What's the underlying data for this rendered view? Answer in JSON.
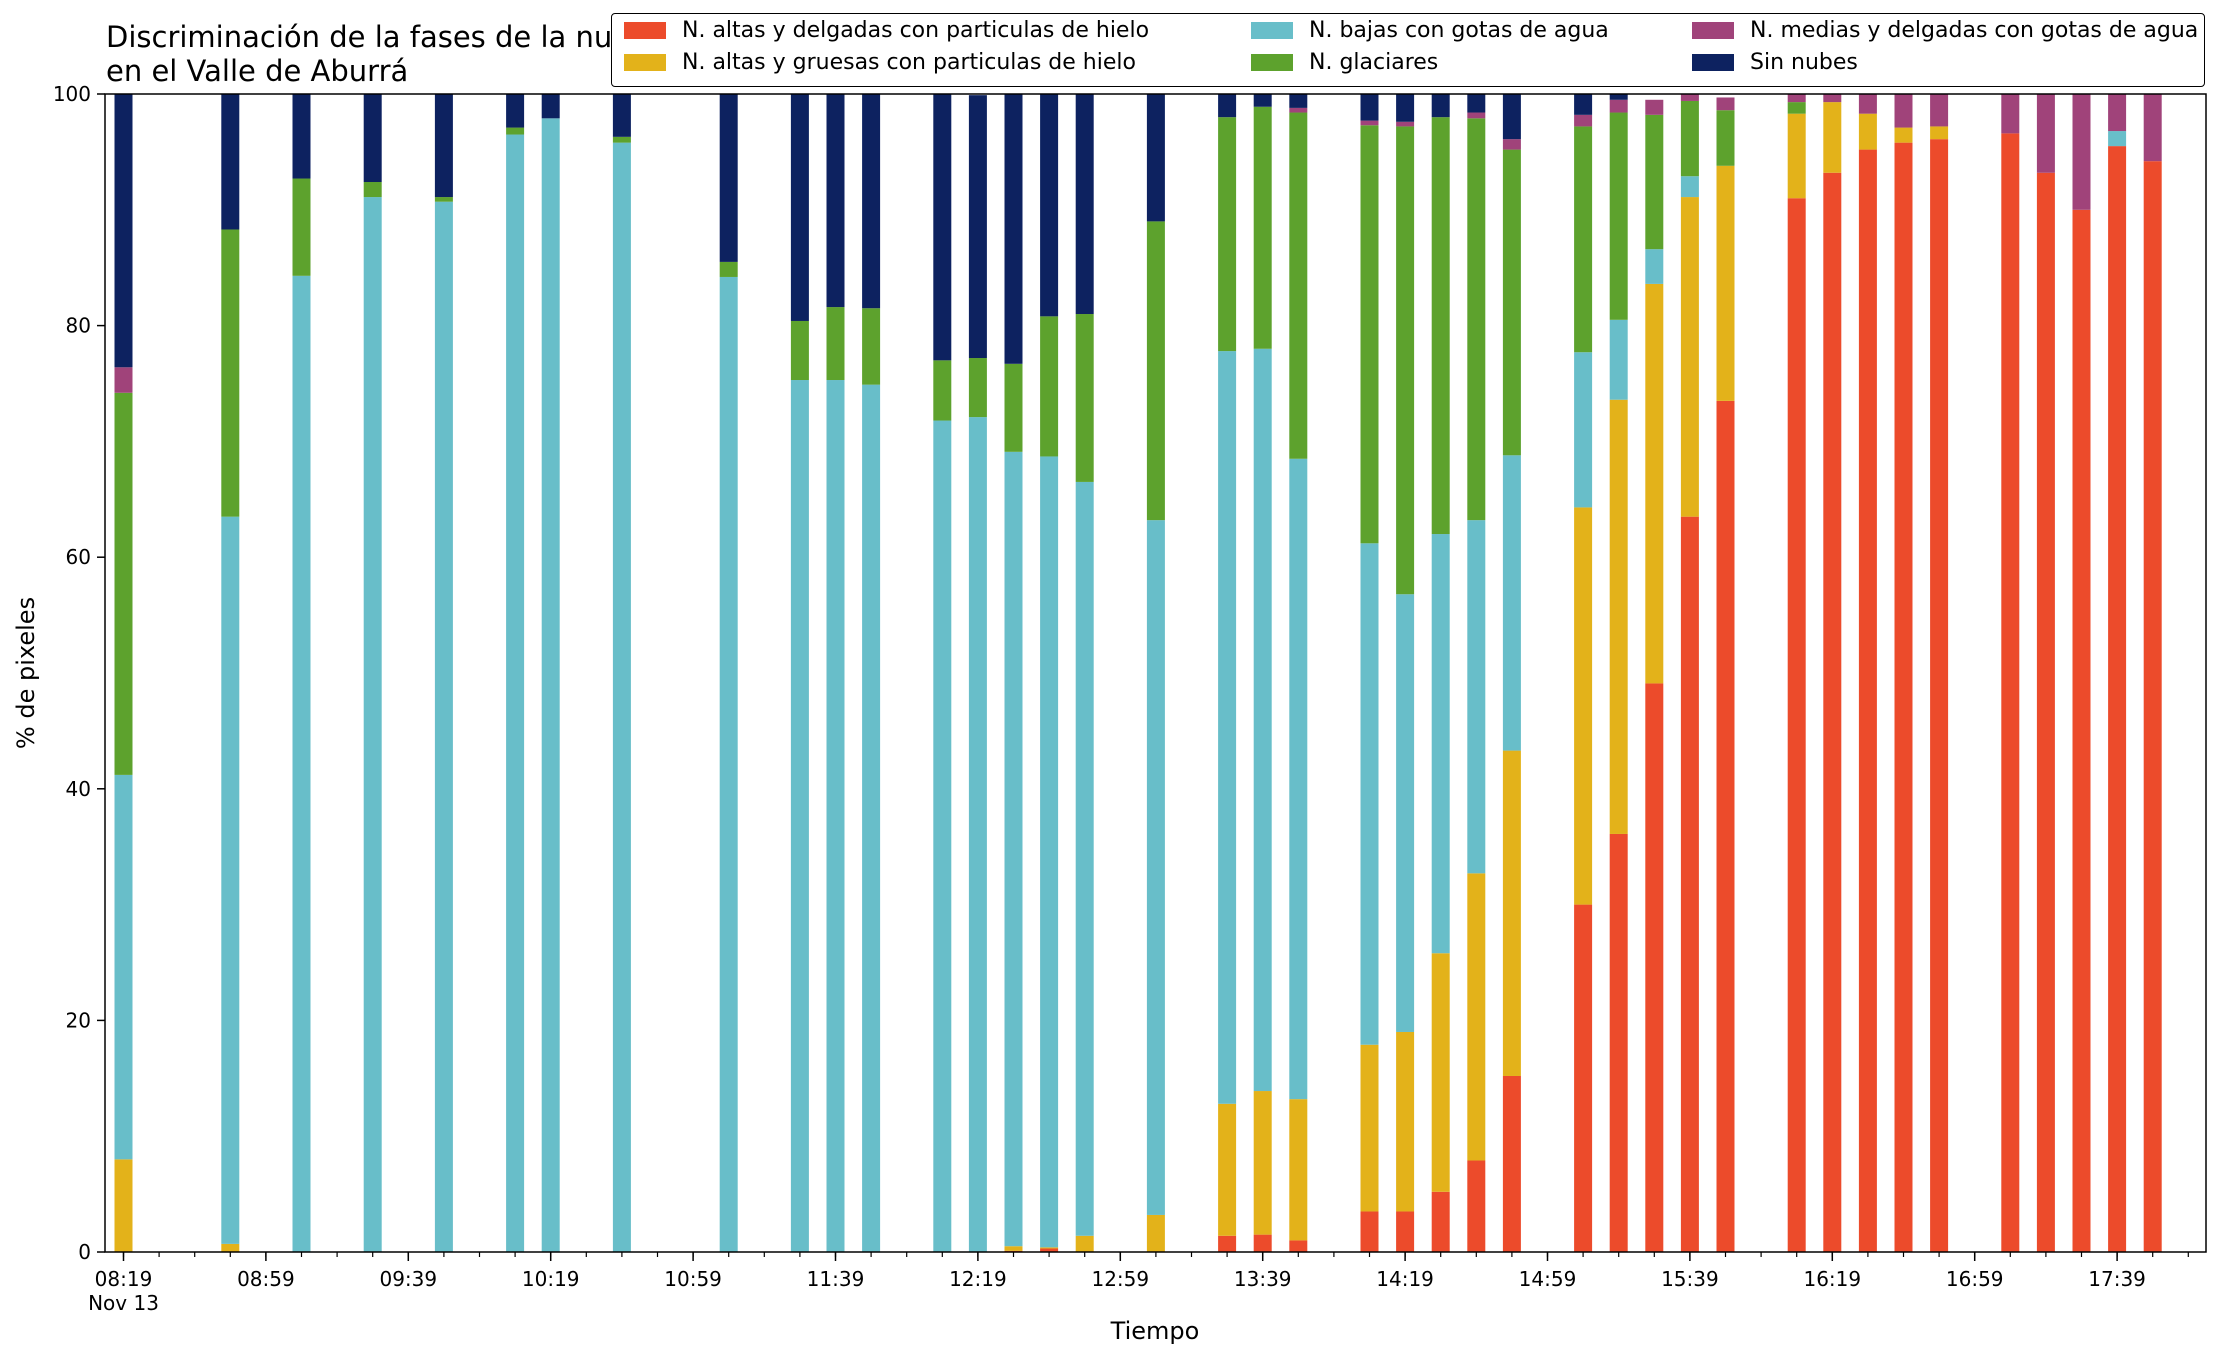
{
  "chart_data": {
    "type": "bar",
    "stacked": true,
    "title": "Discriminación de la fases de la nube en el Valle de Aburrá",
    "xlabel": "Tiempo",
    "ylabel": "% de pixeles",
    "ylim": [
      0,
      100
    ],
    "yticks": [
      0,
      20,
      40,
      60,
      80,
      100
    ],
    "xlim_slots": [
      0,
      58
    ],
    "xticks": [
      {
        "slot": 0,
        "label": "08:19",
        "sublabel": "Nov 13"
      },
      {
        "slot": 4,
        "label": "08:59"
      },
      {
        "slot": 8,
        "label": "09:39"
      },
      {
        "slot": 12,
        "label": "10:19"
      },
      {
        "slot": 16,
        "label": "10:59"
      },
      {
        "slot": 20,
        "label": "11:39"
      },
      {
        "slot": 24,
        "label": "12:19"
      },
      {
        "slot": 28,
        "label": "12:59"
      },
      {
        "slot": 32,
        "label": "13:39"
      },
      {
        "slot": 36,
        "label": "14:19"
      },
      {
        "slot": 40,
        "label": "14:59"
      },
      {
        "slot": 44,
        "label": "15:39"
      },
      {
        "slot": 48,
        "label": "16:19"
      },
      {
        "slot": 52,
        "label": "16:59"
      },
      {
        "slot": 56,
        "label": "17:39"
      }
    ],
    "slots": [
      0,
      3,
      5,
      7,
      9,
      11,
      12,
      14,
      17,
      19,
      20,
      21,
      23,
      24,
      25,
      26,
      27,
      29,
      31,
      32,
      33,
      35,
      36,
      37,
      38,
      39,
      41,
      42,
      43,
      44,
      45,
      47,
      48,
      49,
      50,
      51,
      53,
      54,
      55,
      56,
      57
    ],
    "series": [
      {
        "name": "N. altas y delgadas con particulas de hielo",
        "color": "#ec4b2b",
        "values": [
          0,
          0,
          0,
          0,
          0,
          0,
          0,
          0,
          0,
          0,
          0,
          0,
          0,
          0,
          0.1,
          0.3,
          0,
          0,
          1.4,
          1.5,
          1.0,
          3.5,
          3.5,
          5.2,
          7.9,
          15.2,
          30.0,
          36.1,
          49.1,
          63.5,
          73.5,
          91.0,
          93.2,
          95.2,
          95.8,
          96.1,
          96.6,
          93.2,
          90.0,
          95.5,
          94.2
        ]
      },
      {
        "name": "N. altas y gruesas con particulas de hielo",
        "color": "#e3b21a",
        "values": [
          8.0,
          0.7,
          0,
          0,
          0,
          0,
          0,
          0,
          0,
          0,
          0,
          0,
          0,
          0,
          0.4,
          0.1,
          1.4,
          3.2,
          11.4,
          12.4,
          12.2,
          14.4,
          15.5,
          20.6,
          24.8,
          28.1,
          34.3,
          37.5,
          34.5,
          27.6,
          20.3,
          7.3,
          6.1,
          3.1,
          1.3,
          1.1,
          0,
          0,
          0,
          0,
          0
        ]
      },
      {
        "name": "N. bajas con gotas de agua",
        "color": "#68bec9",
        "values": [
          33.2,
          62.8,
          84.3,
          91.1,
          90.7,
          96.5,
          97.9,
          95.8,
          84.2,
          75.3,
          75.3,
          74.9,
          71.8,
          72.1,
          68.6,
          68.3,
          65.1,
          60.0,
          65.0,
          64.1,
          55.3,
          43.3,
          37.8,
          36.2,
          30.5,
          25.5,
          13.4,
          6.9,
          3.0,
          1.8,
          0,
          0,
          0,
          0,
          0,
          0,
          0,
          0,
          0,
          1.3,
          0
        ]
      },
      {
        "name": "N. glaciares",
        "color": "#5da22d",
        "values": [
          33.0,
          24.8,
          8.4,
          1.3,
          0.4,
          0.6,
          0,
          0.5,
          1.3,
          5.1,
          6.3,
          6.6,
          5.2,
          5.1,
          7.6,
          12.1,
          14.5,
          25.8,
          20.2,
          20.9,
          29.9,
          36.1,
          40.4,
          36.0,
          34.7,
          26.4,
          19.5,
          17.9,
          11.6,
          6.5,
          4.8,
          1.0,
          0,
          0,
          0,
          0,
          0,
          0,
          0,
          0,
          0
        ]
      },
      {
        "name": "N. medias y delgadas con gotas de agua",
        "color": "#a0437a",
        "values": [
          2.2,
          0,
          0,
          0,
          0,
          0,
          0,
          0,
          0,
          0,
          0,
          0,
          0,
          0,
          0,
          0,
          0,
          0,
          0,
          0,
          0.4,
          0.4,
          0.4,
          0,
          0.5,
          0.9,
          1.0,
          1.1,
          1.3,
          0.6,
          1.1,
          0.7,
          0.7,
          1.7,
          2.9,
          2.8,
          3.4,
          6.8,
          10.0,
          3.2,
          5.8
        ]
      },
      {
        "name": "Sin nubes",
        "color": "#0d2260",
        "values": [
          23.6,
          11.7,
          7.3,
          7.6,
          8.9,
          2.9,
          2.1,
          3.7,
          14.5,
          19.6,
          18.4,
          18.5,
          23.0,
          22.7,
          23.3,
          19.2,
          19.0,
          11.0,
          2.0,
          1.1,
          1.2,
          2.3,
          2.4,
          2.0,
          1.6,
          3.9,
          1.8,
          0.5,
          0,
          0,
          0,
          0,
          0,
          0,
          0,
          0,
          0,
          0,
          0,
          0,
          0
        ]
      }
    ],
    "legend_position": "top-right",
    "grid": false
  }
}
